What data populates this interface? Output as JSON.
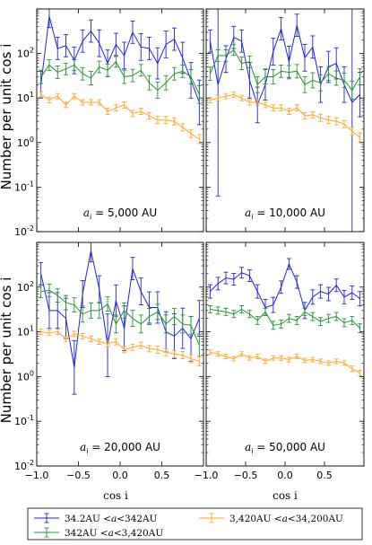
{
  "figure": {
    "ylabel": "Number per unit cos i",
    "xlabel": "cos i",
    "legend": [
      {
        "label": "34.2AU < a < 342AU",
        "color": "#2222dd"
      },
      {
        "label": "342AU < a < 3,420AU",
        "color": "#22922f"
      },
      {
        "label": "3,420AU < a < 34,200AU",
        "color": "#ffa51e"
      }
    ]
  },
  "chart_data": [
    {
      "type": "line",
      "panel": "top-left",
      "annotation": "a_i = 5,000 AU",
      "xlim": [
        -1.0,
        1.0
      ],
      "ylim_log10": [
        -2,
        3
      ],
      "yscale": "log",
      "xticks": [],
      "yticks": [
        "10^-2",
        "10^-1",
        "10^0",
        "10^1",
        "10^2"
      ],
      "x": [
        -0.95,
        -0.85,
        -0.75,
        -0.65,
        -0.55,
        -0.45,
        -0.35,
        -0.25,
        -0.15,
        -0.05,
        0.05,
        0.15,
        0.25,
        0.35,
        0.45,
        0.55,
        0.65,
        0.75,
        0.85,
        0.95
      ],
      "series": [
        {
          "name": "34.2AU < a < 342AU",
          "color": "#2222dd",
          "values": [
            20,
            680,
            130,
            150,
            70,
            190,
            320,
            170,
            60,
            160,
            90,
            300,
            140,
            130,
            60,
            160,
            210,
            80,
            25,
            8
          ],
          "errors_log10": [
            0.3,
            0.25,
            0.25,
            0.25,
            0.3,
            0.25,
            0.25,
            0.3,
            0.3,
            0.25,
            0.3,
            0.25,
            0.3,
            0.25,
            0.35,
            0.3,
            0.25,
            0.35,
            0.4,
            0.5
          ]
        },
        {
          "name": "342AU < a < 3,420AU",
          "color": "#22922f",
          "values": [
            30,
            55,
            38,
            45,
            55,
            35,
            28,
            50,
            42,
            65,
            30,
            32,
            42,
            22,
            15,
            22,
            35,
            40,
            30,
            12
          ],
          "errors_log10": [
            0.15,
            0.12,
            0.14,
            0.13,
            0.12,
            0.14,
            0.15,
            0.13,
            0.14,
            0.12,
            0.15,
            0.14,
            0.13,
            0.16,
            0.18,
            0.16,
            0.14,
            0.14,
            0.16,
            0.2
          ]
        },
        {
          "name": "3,420AU < a < 34,200AU",
          "color": "#ffa51e",
          "values": [
            12,
            9,
            11,
            7,
            11,
            8,
            8,
            8,
            5,
            6,
            7,
            4.5,
            5,
            4,
            3.2,
            3.2,
            3,
            2.2,
            1.6,
            1.2
          ],
          "errors_log10": [
            0.06,
            0.06,
            0.06,
            0.06,
            0.06,
            0.06,
            0.06,
            0.06,
            0.07,
            0.07,
            0.07,
            0.07,
            0.07,
            0.07,
            0.08,
            0.08,
            0.08,
            0.08,
            0.09,
            0.1
          ]
        }
      ]
    },
    {
      "type": "line",
      "panel": "top-right",
      "annotation": "a_i = 10,000 AU",
      "xlim": [
        -1.0,
        1.0
      ],
      "ylim_log10": [
        -2,
        3
      ],
      "yscale": "log",
      "xticks": [],
      "yticks": [],
      "x": [
        -0.95,
        -0.85,
        -0.75,
        -0.65,
        -0.55,
        -0.45,
        -0.35,
        -0.25,
        -0.15,
        -0.05,
        0.05,
        0.15,
        0.25,
        0.35,
        0.45,
        0.55,
        0.65,
        0.75,
        0.85,
        0.95
      ],
      "series": [
        {
          "name": "34.2AU < a < 342AU",
          "color": "#2222dd",
          "values": [
            190,
            20,
            75,
            230,
            190,
            25,
            7,
            20,
            110,
            360,
            65,
            430,
            80,
            140,
            20,
            50,
            60,
            20,
            8,
            12
          ],
          "errors_log10": [
            0.25,
            2.5,
            0.3,
            0.25,
            0.25,
            0.4,
            0.4,
            0.35,
            0.3,
            0.25,
            0.35,
            0.25,
            0.3,
            0.25,
            0.4,
            0.35,
            0.35,
            0.4,
            3.0,
            0.5
          ]
        },
        {
          "name": "342AU < a < 3,420AU",
          "color": "#22922f",
          "values": [
            35,
            90,
            90,
            120,
            60,
            65,
            20,
            30,
            30,
            40,
            38,
            40,
            20,
            25,
            22,
            35,
            28,
            25,
            15,
            30
          ],
          "errors_log10": [
            0.15,
            0.13,
            0.13,
            0.12,
            0.14,
            0.13,
            0.18,
            0.16,
            0.16,
            0.14,
            0.15,
            0.15,
            0.18,
            0.17,
            0.18,
            0.15,
            0.16,
            0.16,
            0.2,
            0.18
          ]
        },
        {
          "name": "3,420AU < a < 34,200AU",
          "color": "#ffa51e",
          "values": [
            9,
            10,
            11,
            12,
            10,
            8,
            8,
            7,
            6,
            6,
            5,
            6,
            4,
            4.2,
            3.6,
            3.2,
            3,
            2.6,
            1.8,
            1.3
          ],
          "errors_log10": [
            0.06,
            0.06,
            0.06,
            0.06,
            0.06,
            0.06,
            0.06,
            0.06,
            0.07,
            0.07,
            0.07,
            0.07,
            0.07,
            0.07,
            0.08,
            0.08,
            0.08,
            0.08,
            0.09,
            0.1
          ]
        }
      ]
    },
    {
      "type": "line",
      "panel": "bottom-left",
      "annotation": "a_i = 20,000 AU",
      "xlim": [
        -1.0,
        1.0
      ],
      "ylim_log10": [
        -2,
        3
      ],
      "yscale": "log",
      "xticks": [
        "-1.0",
        "-0.5",
        "0.0",
        "0.5"
      ],
      "yticks": [
        "10^-2",
        "10^-1",
        "10^0",
        "10^1",
        "10^2"
      ],
      "x": [
        -0.95,
        -0.85,
        -0.75,
        -0.65,
        -0.55,
        -0.45,
        -0.35,
        -0.25,
        -0.15,
        -0.05,
        0.05,
        0.15,
        0.25,
        0.35,
        0.45,
        0.55,
        0.65,
        0.75,
        0.85,
        0.95
      ],
      "series": [
        {
          "name": "34.2AU < a < 342AU",
          "color": "#2222dd",
          "values": [
            200,
            30,
            30,
            20,
            1.6,
            70,
            650,
            90,
            5,
            50,
            12,
            260,
            80,
            35,
            35,
            10,
            8,
            12,
            7,
            20
          ],
          "errors_log10": [
            0.25,
            0.4,
            0.4,
            0.45,
            0.6,
            0.3,
            0.25,
            0.3,
            0.7,
            0.35,
            0.5,
            0.25,
            0.3,
            0.35,
            0.35,
            0.45,
            0.5,
            0.45,
            0.5,
            0.4
          ]
        },
        {
          "name": "342AU < a < 3,420AU",
          "color": "#22922f",
          "values": [
            80,
            85,
            65,
            45,
            40,
            25,
            30,
            30,
            42,
            15,
            30,
            20,
            15,
            22,
            28,
            15,
            22,
            15,
            14,
            5
          ],
          "errors_log10": [
            0.14,
            0.14,
            0.15,
            0.16,
            0.16,
            0.18,
            0.17,
            0.17,
            0.16,
            0.2,
            0.17,
            0.18,
            0.2,
            0.18,
            0.17,
            0.2,
            0.18,
            0.2,
            0.2,
            0.25
          ]
        },
        {
          "name": "3,420AU < a < 34,200AU",
          "color": "#ffa51e",
          "values": [
            10,
            9.5,
            10,
            7,
            9,
            8,
            7,
            6,
            5.5,
            6,
            4,
            4.5,
            5,
            4.2,
            4,
            3.5,
            3.2,
            3,
            2.5,
            2.2
          ],
          "errors_log10": [
            0.06,
            0.06,
            0.06,
            0.06,
            0.06,
            0.06,
            0.06,
            0.06,
            0.07,
            0.07,
            0.07,
            0.07,
            0.07,
            0.07,
            0.08,
            0.08,
            0.08,
            0.08,
            0.09,
            0.1
          ]
        }
      ]
    },
    {
      "type": "line",
      "panel": "bottom-right",
      "annotation": "a_i = 50,000 AU",
      "xlim": [
        -1.0,
        1.0
      ],
      "ylim_log10": [
        -2,
        3
      ],
      "yscale": "log",
      "xticks": [
        "-1.0",
        "-0.5",
        "0.0",
        "0.5"
      ],
      "yticks": [],
      "x": [
        -0.95,
        -0.85,
        -0.75,
        -0.65,
        -0.55,
        -0.45,
        -0.35,
        -0.25,
        -0.15,
        -0.05,
        0.05,
        0.15,
        0.25,
        0.35,
        0.45,
        0.55,
        0.65,
        0.75,
        0.85,
        0.95
      ],
      "series": [
        {
          "name": "34.2AU < a < 342AU",
          "color": "#2222dd",
          "values": [
            80,
            120,
            160,
            150,
            210,
            180,
            80,
            35,
            40,
            100,
            330,
            130,
            30,
            60,
            80,
            70,
            110,
            60,
            75,
            55
          ],
          "errors_log10": [
            0.15,
            0.14,
            0.13,
            0.13,
            0.12,
            0.13,
            0.15,
            0.18,
            0.17,
            0.14,
            0.12,
            0.14,
            0.18,
            0.16,
            0.15,
            0.15,
            0.14,
            0.15,
            0.15,
            0.16
          ]
        },
        {
          "name": "342AU < a < 3,420AU",
          "color": "#22922f",
          "values": [
            32,
            30,
            28,
            25,
            32,
            25,
            18,
            28,
            14,
            15,
            20,
            18,
            28,
            22,
            17,
            20,
            22,
            16,
            18,
            12
          ],
          "errors_log10": [
            0.08,
            0.08,
            0.08,
            0.08,
            0.08,
            0.08,
            0.09,
            0.08,
            0.09,
            0.09,
            0.09,
            0.09,
            0.08,
            0.09,
            0.09,
            0.09,
            0.09,
            0.09,
            0.09,
            0.1
          ]
        },
        {
          "name": "3,420AU < a < 34,200AU",
          "color": "#ffa51e",
          "values": [
            3.5,
            3.2,
            2.8,
            2.5,
            3.2,
            2.6,
            2.8,
            2.2,
            2.6,
            2.6,
            2.4,
            2.8,
            2.3,
            2.4,
            2.2,
            2.0,
            2.2,
            2.0,
            1.5,
            1.2
          ],
          "errors_log10": [
            0.05,
            0.05,
            0.05,
            0.05,
            0.05,
            0.05,
            0.05,
            0.05,
            0.05,
            0.05,
            0.05,
            0.05,
            0.05,
            0.05,
            0.05,
            0.05,
            0.05,
            0.05,
            0.06,
            0.06
          ]
        }
      ]
    }
  ]
}
